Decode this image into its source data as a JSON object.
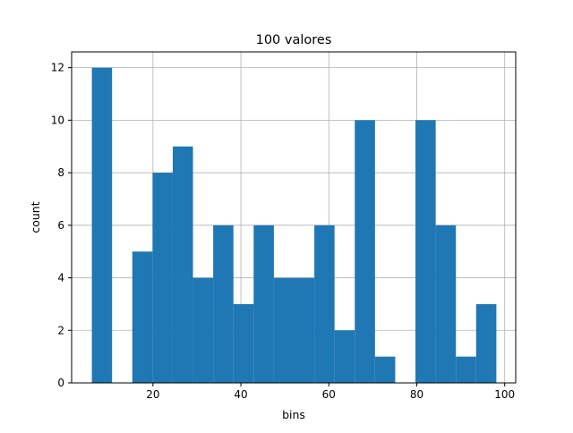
{
  "chart_data": {
    "type": "bar",
    "title": "100 valores",
    "xlabel": "bins",
    "ylabel": "count",
    "xlim": [
      1.5,
      102.5
    ],
    "ylim": [
      0,
      12.6
    ],
    "grid": true,
    "bar_color": "#1f77b4",
    "x_ticks": [
      20,
      40,
      60,
      80,
      100
    ],
    "y_ticks": [
      0,
      2,
      4,
      6,
      8,
      10,
      12
    ],
    "bins": [
      {
        "start": 6.1,
        "end": 10.7,
        "count": 12
      },
      {
        "start": 10.7,
        "end": 15.3,
        "count": 0
      },
      {
        "start": 15.3,
        "end": 19.9,
        "count": 5
      },
      {
        "start": 19.9,
        "end": 24.5,
        "count": 8
      },
      {
        "start": 24.5,
        "end": 29.1,
        "count": 9
      },
      {
        "start": 29.1,
        "end": 33.7,
        "count": 4
      },
      {
        "start": 33.7,
        "end": 38.3,
        "count": 6
      },
      {
        "start": 38.3,
        "end": 42.9,
        "count": 3
      },
      {
        "start": 42.9,
        "end": 47.5,
        "count": 6
      },
      {
        "start": 47.5,
        "end": 52.1,
        "count": 4
      },
      {
        "start": 52.1,
        "end": 56.7,
        "count": 4
      },
      {
        "start": 56.7,
        "end": 61.3,
        "count": 6
      },
      {
        "start": 61.3,
        "end": 65.9,
        "count": 2
      },
      {
        "start": 65.9,
        "end": 70.5,
        "count": 10
      },
      {
        "start": 70.5,
        "end": 75.1,
        "count": 1
      },
      {
        "start": 75.1,
        "end": 79.7,
        "count": 0
      },
      {
        "start": 79.7,
        "end": 84.3,
        "count": 10
      },
      {
        "start": 84.3,
        "end": 88.9,
        "count": 6
      },
      {
        "start": 88.9,
        "end": 93.5,
        "count": 1
      },
      {
        "start": 93.5,
        "end": 98.1,
        "count": 3
      }
    ]
  }
}
